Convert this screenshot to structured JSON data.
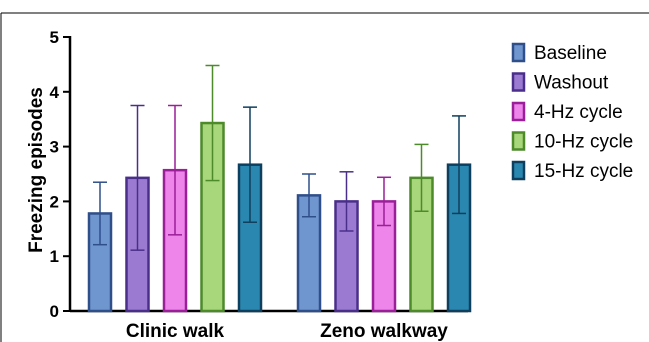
{
  "chart_data": {
    "type": "bar",
    "ylabel": "Freezing episodes",
    "ylim": [
      0,
      5
    ],
    "yticks": [
      "0",
      "1",
      "2",
      "3",
      "4",
      "5"
    ],
    "categories": [
      "Clinic walk",
      "Zeno walkway"
    ],
    "legend_position": "right",
    "grid": false,
    "series": [
      {
        "name": "Baseline",
        "values": [
          1.78,
          2.11
        ],
        "err_low": [
          1.21,
          1.72
        ],
        "err_high": [
          2.35,
          2.5
        ],
        "fill": "#7096d0",
        "edge": "#2f4f8a"
      },
      {
        "name": "Washout",
        "values": [
          2.43,
          2.0
        ],
        "err_low": [
          1.11,
          1.46
        ],
        "err_high": [
          3.75,
          2.54
        ],
        "fill": "#9b7bd1",
        "edge": "#4a2f8a"
      },
      {
        "name": "4-Hz cycle",
        "values": [
          2.57,
          2.0
        ],
        "err_low": [
          1.39,
          1.56
        ],
        "err_high": [
          3.75,
          2.44
        ],
        "fill": "#ee85ea",
        "edge": "#9a1f98"
      },
      {
        "name": "10-Hz cycle",
        "values": [
          3.43,
          2.43
        ],
        "err_low": [
          2.38,
          1.82
        ],
        "err_high": [
          4.48,
          3.04
        ],
        "fill": "#a8d67a",
        "edge": "#4d8a2a"
      },
      {
        "name": "15-Hz cycle",
        "values": [
          2.67,
          2.67
        ],
        "err_low": [
          1.62,
          1.78
        ],
        "err_high": [
          3.72,
          3.56
        ],
        "fill": "#2a88b0",
        "edge": "#0f3f5e"
      }
    ]
  }
}
